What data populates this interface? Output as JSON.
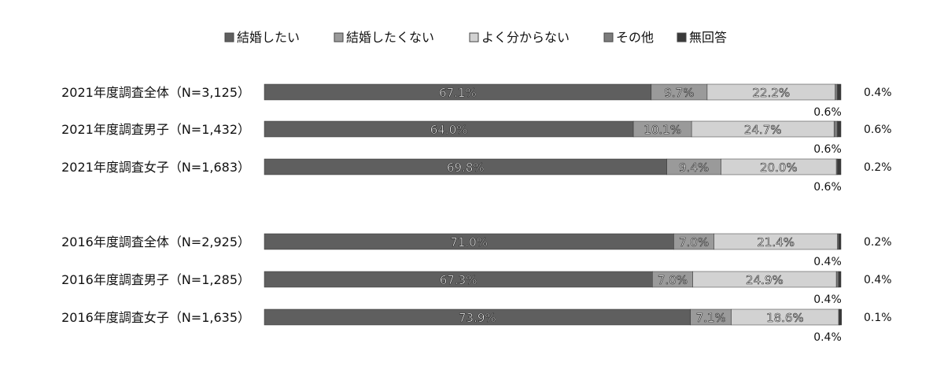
{
  "chart_data": {
    "type": "bar",
    "orientation": "horizontal",
    "stacked": true,
    "percent_stacked": true,
    "title": "",
    "xlabel": "",
    "ylabel": "",
    "xlim": [
      0,
      100
    ],
    "grid": false,
    "legend_position": "top-center",
    "categories": [
      "2021年度調査全体（N=3,125）",
      "2021年度調査男子（N=1,432）",
      "2021年度調査女子（N=1,683）",
      "2016年度調査全体（N=2,925）",
      "2016年度調査男子（N=1,285）",
      "2016年度調査女子（N=1,635）"
    ],
    "series": [
      {
        "name": "結婚したい",
        "color": "#5f5f5f",
        "values": [
          67.1,
          64.0,
          69.8,
          71.0,
          67.3,
          73.9
        ],
        "labels": [
          "67.1%",
          "64.0%",
          "69.8%",
          "71.0%",
          "67.3%",
          "73.9%"
        ]
      },
      {
        "name": "結婚したくない",
        "color": "#9a9a9a",
        "values": [
          9.7,
          10.1,
          9.4,
          7.0,
          7.0,
          7.1
        ],
        "labels": [
          "9.7%",
          "10.1%",
          "9.4%",
          "7.0%",
          "7.0%",
          "7.1%"
        ]
      },
      {
        "name": "よく分からない",
        "color": "#d2d2d2",
        "values": [
          22.2,
          24.7,
          20.0,
          21.4,
          24.9,
          18.6
        ],
        "labels": [
          "22.2%",
          "24.7%",
          "20.0%",
          "21.4%",
          "24.9%",
          "18.6%"
        ]
      },
      {
        "name": "その他",
        "color": "#7c7c7c",
        "values": [
          0.4,
          0.6,
          0.2,
          0.2,
          0.4,
          0.1
        ],
        "labels": [
          "0.4%",
          "0.6%",
          "0.2%",
          "0.2%",
          "0.4%",
          "0.1%"
        ]
      },
      {
        "name": "無回答",
        "color": "#3a3a3a",
        "values": [
          0.6,
          0.6,
          0.6,
          0.4,
          0.4,
          0.4
        ],
        "labels": [
          "0.6%",
          "0.6%",
          "0.6%",
          "0.4%",
          "0.4%",
          "0.4%"
        ]
      }
    ]
  }
}
